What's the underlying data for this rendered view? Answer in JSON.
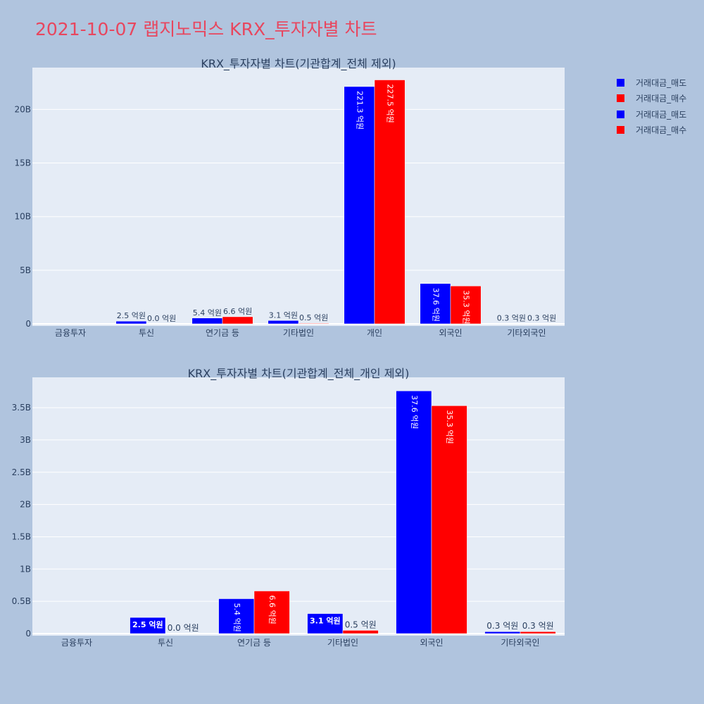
{
  "title": "2021-10-07 랩지노믹스 KRX_투자자별 차트",
  "colors": {
    "sell": "#0000ff",
    "buy": "#ff0000",
    "plot_bg": "#e5ecf6",
    "page_bg": "#b0c4de",
    "title": "#e8465e",
    "text": "#2a3f5f"
  },
  "legend": [
    {
      "label": "거래대금_매도",
      "color": "#0000ff"
    },
    {
      "label": "거래대금_매수",
      "color": "#ff0000"
    },
    {
      "label": "거래대금_매도",
      "color": "#0000ff"
    },
    {
      "label": "거래대금_매수",
      "color": "#ff0000"
    }
  ],
  "chart_data": [
    {
      "type": "bar",
      "title": "KRX_투자자별 차트(기관합계_전체 제외)",
      "categories": [
        "금융투자",
        "투신",
        "연기금 등",
        "기타법인",
        "개인",
        "외국인",
        "기타외국인"
      ],
      "series": [
        {
          "name": "거래대금_매도",
          "values": [
            0,
            0.25,
            0.54,
            0.31,
            22.13,
            3.76,
            0.03
          ],
          "labels": [
            "",
            "2.5 억원",
            "5.4 억원",
            "3.1 억원",
            "221.3 억원",
            "37.6 억원",
            "0.3 억원"
          ]
        },
        {
          "name": "거래대금_매수",
          "values": [
            0,
            0.0,
            0.66,
            0.05,
            22.75,
            3.53,
            0.03
          ],
          "labels": [
            "",
            "0.0 억원",
            "6.6 억원",
            "0.5 억원",
            "227.5 억원",
            "35.3 억원",
            "0.3 억원"
          ]
        }
      ],
      "ylim": [
        0,
        23.9
      ],
      "ytick_values": [
        0,
        5,
        10,
        15,
        20
      ],
      "ytick_labels": [
        "0",
        "5B",
        "10B",
        "15B",
        "20B"
      ],
      "value_unit": "B"
    },
    {
      "type": "bar",
      "title": "KRX_투자자별 차트(기관합계_전체_개인 제외)",
      "categories": [
        "금융투자",
        "투신",
        "연기금 등",
        "기타법인",
        "외국인",
        "기타외국인"
      ],
      "series": [
        {
          "name": "거래대금_매도",
          "values": [
            0,
            0.25,
            0.54,
            0.31,
            3.76,
            0.03
          ],
          "labels": [
            "",
            "2.5 억원",
            "5.4 억원",
            "3.1 억원",
            "37.6 억원",
            "0.3 억원"
          ]
        },
        {
          "name": "거래대금_매수",
          "values": [
            0,
            0.0,
            0.66,
            0.05,
            3.53,
            0.03
          ],
          "labels": [
            "",
            "0.0 억원",
            "6.6 억원",
            "0.5 억원",
            "35.3 억원",
            "0.3 억원"
          ]
        }
      ],
      "ylim": [
        0,
        3.97
      ],
      "ytick_values": [
        0,
        0.5,
        1,
        1.5,
        2,
        2.5,
        3,
        3.5
      ],
      "ytick_labels": [
        "0",
        "0.5B",
        "1B",
        "1.5B",
        "2B",
        "2.5B",
        "3B",
        "3.5B"
      ],
      "value_unit": "B"
    }
  ]
}
